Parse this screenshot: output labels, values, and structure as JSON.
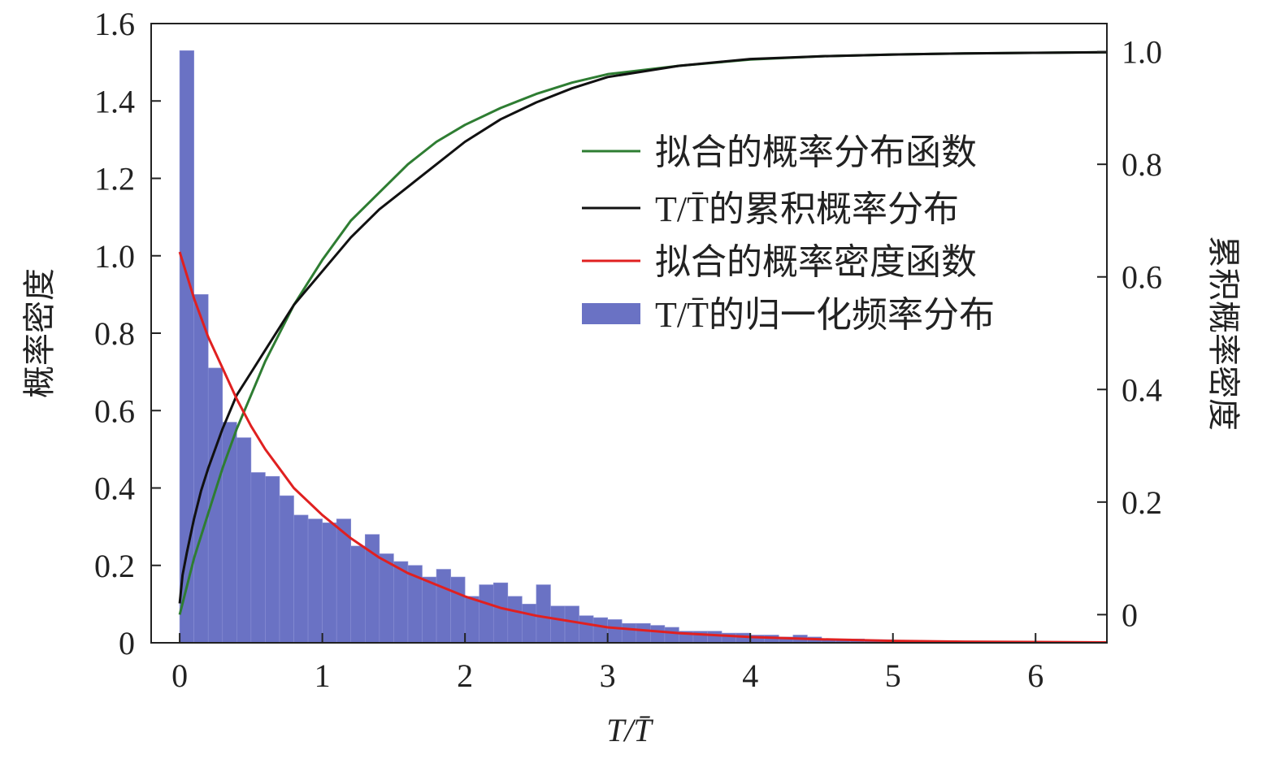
{
  "chart_data": {
    "type": "bar",
    "xlabel": "T/T̄",
    "ylabel_left": "概率密度",
    "ylabel_right": "累积概率密度",
    "xlim": [
      -0.2,
      6.5
    ],
    "ylim_left": [
      0,
      1.6
    ],
    "ylim_right": [
      -0.05,
      1.05
    ],
    "xticks": [
      "0",
      "1",
      "2",
      "3",
      "4",
      "5",
      "6"
    ],
    "yticks_left": [
      "0",
      "0.2",
      "0.4",
      "0.6",
      "0.8",
      "1.0",
      "1.2",
      "1.4",
      "1.6"
    ],
    "yticks_right": [
      "0",
      "0.2",
      "0.4",
      "0.6",
      "0.8",
      "1.0"
    ],
    "grid": false,
    "legend_position": "right",
    "colors": {
      "bars": "#6a72c4",
      "fit_cdf": "#2e7d32",
      "empirical_cdf": "#111111",
      "fit_pdf": "#e02020"
    },
    "histogram": {
      "name": "T/T̄的归一化频率分布",
      "bin_width": 0.1,
      "bin_start": 0,
      "values": [
        1.53,
        0.9,
        0.71,
        0.57,
        0.53,
        0.44,
        0.43,
        0.38,
        0.33,
        0.32,
        0.31,
        0.32,
        0.25,
        0.28,
        0.23,
        0.21,
        0.2,
        0.17,
        0.19,
        0.17,
        0.12,
        0.15,
        0.155,
        0.12,
        0.1,
        0.15,
        0.095,
        0.095,
        0.07,
        0.065,
        0.06,
        0.05,
        0.05,
        0.045,
        0.04,
        0.03,
        0.03,
        0.03,
        0.025,
        0.025,
        0.02,
        0.02,
        0.015,
        0.02,
        0.015,
        0.01,
        0.01,
        0.01,
        0.008,
        0.008,
        0.006,
        0.006,
        0.005,
        0.005,
        0.004,
        0.004,
        0.003,
        0.003,
        0.003,
        0.002,
        0.002,
        0.002,
        0.002,
        0.001,
        0.001
      ]
    },
    "series": [
      {
        "name": "拟合的概率分布函数",
        "axis": "right",
        "x": [
          0,
          0.1,
          0.2,
          0.3,
          0.4,
          0.5,
          0.6,
          0.7,
          0.8,
          1.0,
          1.2,
          1.4,
          1.6,
          1.8,
          2.0,
          2.25,
          2.5,
          2.75,
          3.0,
          3.5,
          4.0,
          4.5,
          5.0,
          5.5,
          6.0,
          6.5
        ],
        "y": [
          0.0,
          0.1,
          0.18,
          0.26,
          0.33,
          0.39,
          0.45,
          0.5,
          0.55,
          0.63,
          0.7,
          0.75,
          0.8,
          0.84,
          0.87,
          0.9,
          0.925,
          0.945,
          0.96,
          0.975,
          0.986,
          0.992,
          0.995,
          0.997,
          0.998,
          0.999
        ]
      },
      {
        "name": "T/T̄的累积概率分布",
        "axis": "right",
        "x": [
          0,
          0.02,
          0.05,
          0.1,
          0.15,
          0.2,
          0.3,
          0.4,
          0.5,
          0.6,
          0.7,
          0.8,
          1.0,
          1.2,
          1.4,
          1.6,
          1.8,
          2.0,
          2.25,
          2.5,
          2.75,
          3.0,
          3.5,
          4.0,
          4.5,
          5.0,
          5.5,
          6.0,
          6.5
        ],
        "y": [
          0.02,
          0.07,
          0.11,
          0.17,
          0.22,
          0.26,
          0.33,
          0.39,
          0.43,
          0.47,
          0.51,
          0.55,
          0.61,
          0.67,
          0.72,
          0.76,
          0.8,
          0.84,
          0.88,
          0.91,
          0.935,
          0.955,
          0.975,
          0.987,
          0.992,
          0.995,
          0.997,
          0.998,
          0.999
        ]
      },
      {
        "name": "拟合的概率密度函数",
        "axis": "left",
        "x": [
          0,
          0.1,
          0.2,
          0.3,
          0.4,
          0.5,
          0.6,
          0.7,
          0.8,
          1.0,
          1.2,
          1.4,
          1.6,
          1.8,
          2.0,
          2.25,
          2.5,
          2.75,
          3.0,
          3.5,
          4.0,
          4.5,
          5.0,
          5.5,
          6.0,
          6.5
        ],
        "y": [
          1.01,
          0.89,
          0.79,
          0.71,
          0.63,
          0.56,
          0.5,
          0.45,
          0.4,
          0.33,
          0.27,
          0.22,
          0.18,
          0.15,
          0.12,
          0.09,
          0.07,
          0.055,
          0.04,
          0.025,
          0.015,
          0.009,
          0.005,
          0.003,
          0.002,
          0.001
        ]
      }
    ]
  }
}
